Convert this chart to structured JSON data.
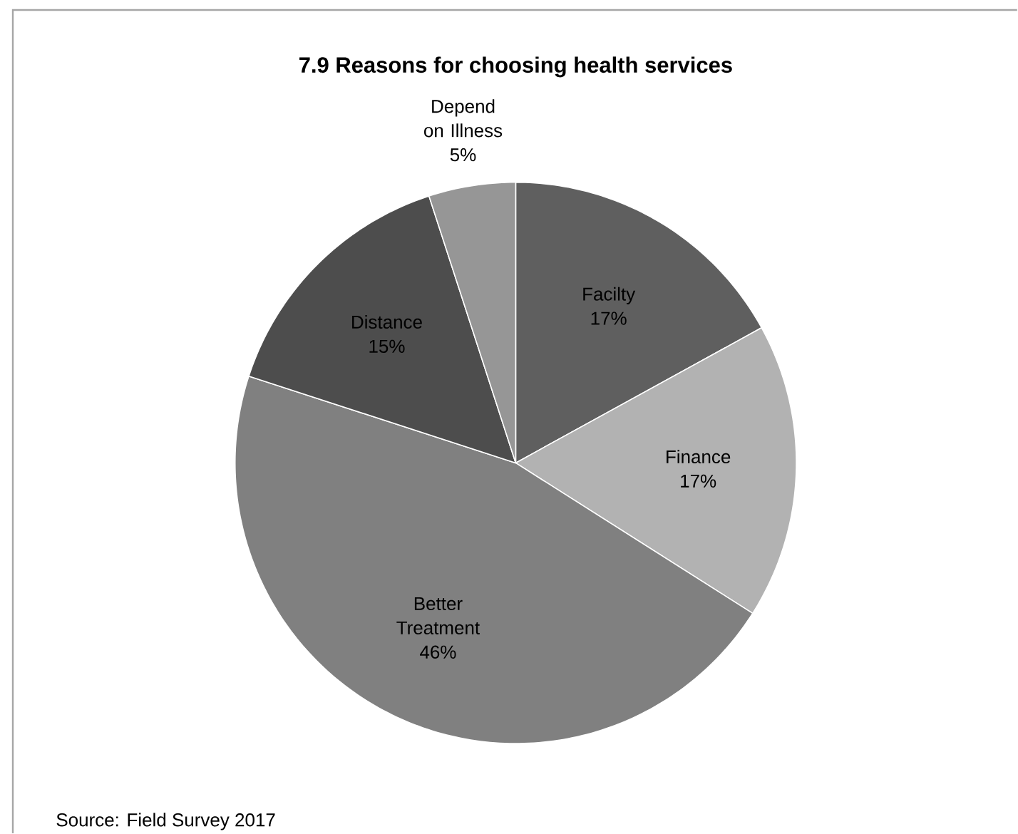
{
  "chart_data": {
    "type": "pie",
    "title": "7.9 Reasons for choosing health services",
    "categories": [
      "Facilty",
      "Finance",
      "Better Treatment",
      "Distance",
      "Depend on Illness"
    ],
    "values": [
      17,
      17,
      46,
      15,
      5
    ],
    "value_labels": [
      "17%",
      "17%",
      "46%",
      "15%",
      "5%"
    ],
    "colors": [
      "#5f5f5f",
      "#b2b2b2",
      "#808080",
      "#4d4d4d",
      "#969696"
    ],
    "annotations": [
      "Source: Field Survey 2017"
    ]
  }
}
